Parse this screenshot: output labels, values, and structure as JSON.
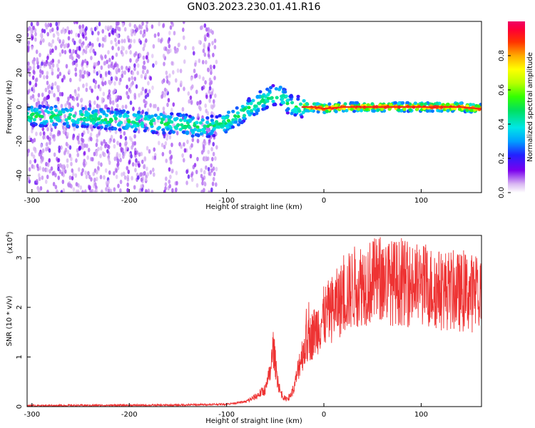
{
  "title": "GN03.2023.230.01.41.R16",
  "chart_data": [
    {
      "type": "heatmap",
      "xlabel": "Height of straight line (km)",
      "ylabel": "Frequency (Hz)",
      "xlim": [
        -305,
        162
      ],
      "ylim": [
        -50,
        50
      ],
      "xticks": [
        "-300",
        "-200",
        "-100",
        "0",
        "100"
      ],
      "xtick_values": [
        -300,
        -200,
        -100,
        0,
        100
      ],
      "yticks": [
        "40",
        "20",
        "0",
        "-20",
        "-40"
      ],
      "ytick_values": [
        40,
        20,
        0,
        -20,
        -40
      ],
      "colorbar": {
        "label": "Normalized spectral amplitude",
        "range": [
          0,
          1
        ],
        "ticks": [
          "0.0",
          "0.2",
          "0.4",
          "0.6",
          "0.8"
        ],
        "tick_values": [
          0,
          0.2,
          0.4,
          0.6,
          0.8
        ]
      },
      "ridge": {
        "x": [
          -300,
          -250,
          -200,
          -150,
          -120,
          -100,
          -80,
          -60,
          -45,
          -35,
          -25,
          -10,
          0,
          20,
          50,
          80,
          110,
          140,
          160
        ],
        "y": [
          -5,
          -6,
          -8,
          -10,
          -12,
          -9,
          -2,
          5,
          8,
          1,
          0,
          0,
          -1,
          0,
          0,
          0,
          0,
          0,
          -1
        ]
      },
      "grid": false
    },
    {
      "type": "line",
      "xlabel": "Height of straight line (km)",
      "ylabel": "SNR (10 * v/v)",
      "y_multiplier": "(x10",
      "y_exponent": "4",
      "y_multiplier_close": ")",
      "xlim": [
        -305,
        162
      ],
      "ylim": [
        0,
        3.45
      ],
      "xticks": [
        "-300",
        "-200",
        "-100",
        "0",
        "100"
      ],
      "xtick_values": [
        -300,
        -200,
        -100,
        0,
        100
      ],
      "yticks": [
        "0",
        "1",
        "2",
        "3"
      ],
      "ytick_values": [
        0,
        1,
        2,
        3
      ],
      "series": [
        {
          "color": "#ee3333",
          "envelope_x": [
            -305,
            -150,
            -100,
            -80,
            -70,
            -60,
            -55,
            -52,
            -48,
            -45,
            -40,
            -35,
            -30,
            -25,
            -20,
            -10,
            0,
            10,
            20,
            30,
            40,
            50,
            60,
            70,
            80,
            90,
            100,
            110,
            120,
            130,
            140,
            150,
            162
          ],
          "envelope_y": [
            0.02,
            0.03,
            0.05,
            0.1,
            0.2,
            0.35,
            0.7,
            1.2,
            0.6,
            0.3,
            0.15,
            0.2,
            0.4,
            0.9,
            1.2,
            1.5,
            1.8,
            2.0,
            2.2,
            2.4,
            2.5,
            2.5,
            2.6,
            2.5,
            2.5,
            2.45,
            2.45,
            2.4,
            2.35,
            2.35,
            2.3,
            2.3,
            2.25
          ]
        }
      ],
      "grid": false
    }
  ]
}
